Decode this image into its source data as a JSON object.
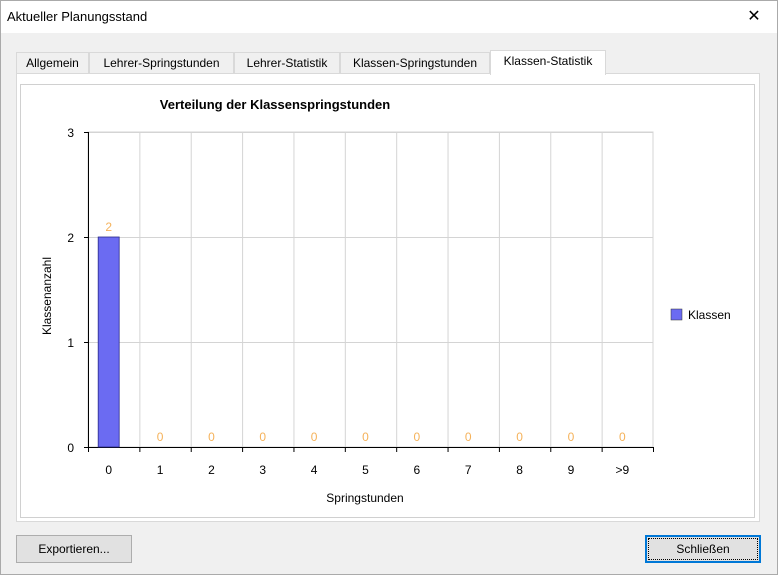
{
  "window": {
    "title": "Aktueller Planungsstand",
    "close_glyph": "✕"
  },
  "tabs": [
    {
      "label": "Allgemein",
      "active": false
    },
    {
      "label": "Lehrer-Springstunden",
      "active": false
    },
    {
      "label": "Lehrer-Statistik",
      "active": false
    },
    {
      "label": "Klassen-Springstunden",
      "active": false
    },
    {
      "label": "Klassen-Statistik",
      "active": true
    }
  ],
  "chart_data": {
    "type": "bar",
    "title": "Verteilung der Klassenspringstunden",
    "xlabel": "Springstunden",
    "ylabel": "Klassenanzahl",
    "categories": [
      "0",
      "1",
      "2",
      "3",
      "4",
      "5",
      "6",
      "7",
      "8",
      "9",
      ">9"
    ],
    "series": [
      {
        "name": "Klassen",
        "values": [
          2,
          0,
          0,
          0,
          0,
          0,
          0,
          0,
          0,
          0,
          0
        ],
        "color": "#6b6bf2"
      }
    ],
    "ylim": [
      0,
      3
    ],
    "yticks": [
      "0",
      "1",
      "2",
      "3"
    ],
    "grid": true,
    "legend_position": "right",
    "data_label_color": "#f5b25a"
  },
  "buttons": {
    "export": "Exportieren...",
    "close": "Schließen"
  }
}
